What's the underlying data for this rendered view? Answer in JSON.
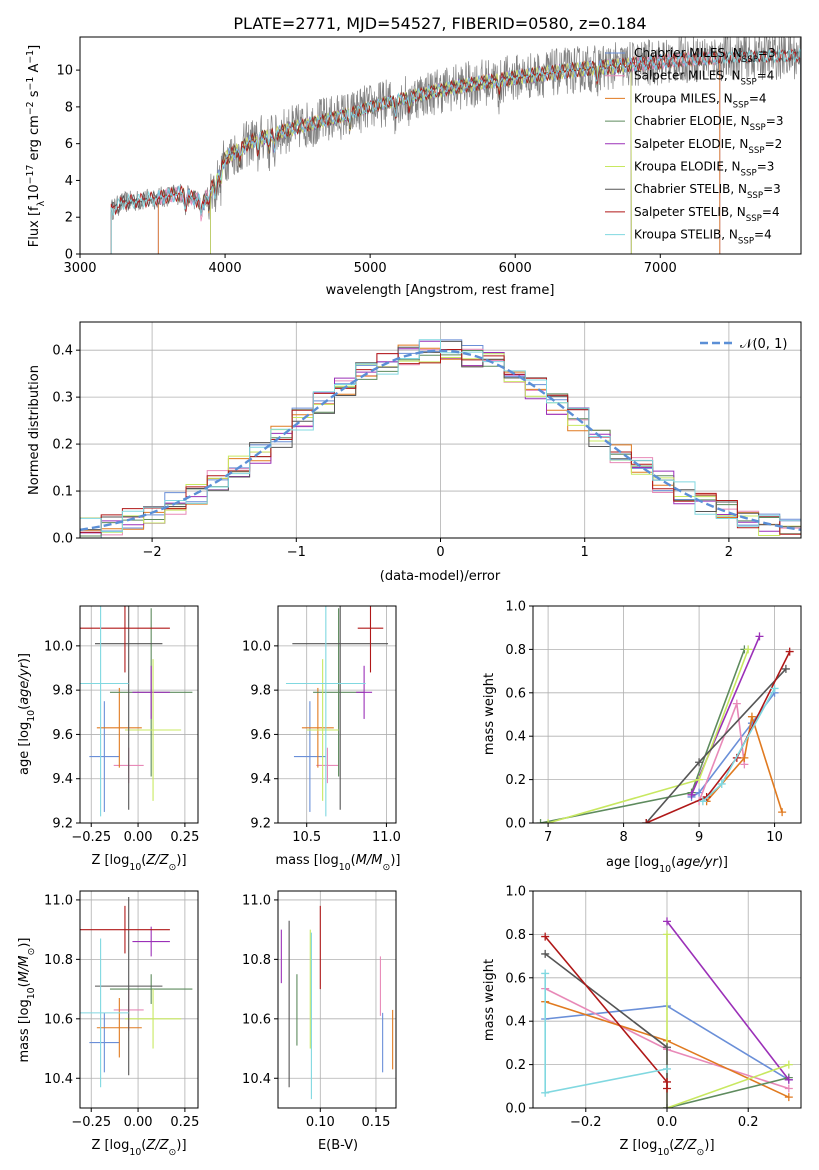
{
  "figure_title": "PLATE=2771, MJD=54527, FIBERID=0580, z=0.184",
  "colors": {
    "Chabrier MILES": "#6a8fd8",
    "Salpeter MILES": "#e889b8",
    "Kroupa MILES": "#e07a20",
    "Chabrier ELODIE": "#5e8b5e",
    "Salpeter ELODIE": "#9b30b8",
    "Kroupa ELODIE": "#c8e860",
    "Chabrier STELIB": "#555555",
    "Salpeter STELIB": "#b01818",
    "Kroupa STELIB": "#80d8e0",
    "data": "#808080",
    "gaussian": "#5b8fd6"
  },
  "chart_data": [
    {
      "id": "spectrum",
      "type": "line",
      "title": "PLATE=2771, MJD=54527, FIBERID=0580, z=0.184",
      "xlabel": "wavelength [Angstrom, rest frame]",
      "ylabel": "Flux [f_λ 10^-17 erg cm^-2 s^-1 A^-1]",
      "xlim": [
        3000,
        7970
      ],
      "ylim": [
        0,
        11.8
      ],
      "xticks": [
        3000,
        4000,
        5000,
        6000,
        7000
      ],
      "yticks": [
        0,
        2,
        4,
        6,
        8,
        10
      ],
      "grid": false,
      "legend_position": "upper-right",
      "legend": [
        "Chabrier MILES, N_SSP=3",
        "Salpeter MILES, N_SSP=4",
        "Kroupa MILES, N_SSP=4",
        "Chabrier ELODIE, N_SSP=3",
        "Salpeter ELODIE, N_SSP=2",
        "Kroupa ELODIE, N_SSP=3",
        "Chabrier STELIB, N_SSP=3",
        "Salpeter STELIB, N_SSP=4",
        "Kroupa STELIB, N_SSP=4"
      ],
      "continuum_x": [
        3215,
        3300,
        3500,
        3700,
        3850,
        3950,
        4000,
        4200,
        4500,
        4800,
        5000,
        5300,
        5600,
        6000,
        6400,
        6800,
        7200,
        7500,
        7970
      ],
      "continuum_y": [
        2.4,
        2.8,
        3.0,
        3.3,
        2.8,
        4.2,
        5.2,
        6.2,
        6.9,
        7.5,
        8.0,
        8.6,
        9.1,
        9.6,
        10.0,
        10.3,
        10.6,
        10.7,
        10.8
      ],
      "model_ranges": {
        "Chabrier MILES": [
          3540,
          7410
        ],
        "Salpeter MILES": [
          3540,
          7410
        ],
        "Kroupa MILES": [
          3540,
          7410
        ],
        "Chabrier ELODIE": [
          3900,
          6800
        ],
        "Salpeter ELODIE": [
          3900,
          6800
        ],
        "Kroupa ELODIE": [
          3900,
          6800
        ],
        "Chabrier STELIB": [
          3215,
          7970
        ],
        "Salpeter STELIB": [
          3215,
          7970
        ],
        "Kroupa STELIB": [
          3215,
          7970
        ]
      }
    },
    {
      "id": "residuals",
      "type": "histogram",
      "xlabel": "(data-model)/error",
      "ylabel": "Normed distribution",
      "xlim": [
        -2.5,
        2.5
      ],
      "ylim": [
        0,
        0.46
      ],
      "xticks": [
        -2,
        -1,
        0,
        1,
        2
      ],
      "yticks": [
        0.0,
        0.1,
        0.2,
        0.3,
        0.4
      ],
      "grid": true,
      "legend_position": "upper-right",
      "legend": [
        "N(0, 1)"
      ]
    },
    {
      "id": "age_vs_Z",
      "type": "errorbar",
      "xlabel": "Z [log10(Z/Z⊙)]",
      "ylabel": "age  [log10(age/yr)]",
      "xlim": [
        -0.31,
        0.32
      ],
      "ylim": [
        9.2,
        10.18
      ],
      "xticks": [
        -0.25,
        0.0,
        0.25
      ],
      "yticks": [
        9.2,
        9.4,
        9.6,
        9.8,
        10.0
      ],
      "points": [
        {
          "model": "Chabrier MILES",
          "x": -0.18,
          "y": 9.5,
          "xerr": 0.08,
          "yerr": 0.25
        },
        {
          "model": "Salpeter MILES",
          "x": -0.05,
          "y": 9.46,
          "xerr": 0.08,
          "yerr": 0.08
        },
        {
          "model": "Kroupa MILES",
          "x": -0.1,
          "y": 9.63,
          "xerr": 0.12,
          "yerr": 0.18
        },
        {
          "model": "Chabrier ELODIE",
          "x": 0.07,
          "y": 9.79,
          "xerr": 0.22,
          "yerr": 0.38
        },
        {
          "model": "Salpeter ELODIE",
          "x": 0.07,
          "y": 9.79,
          "xerr": 0.1,
          "yerr": 0.12
        },
        {
          "model": "Kroupa ELODIE",
          "x": 0.08,
          "y": 9.62,
          "xerr": 0.15,
          "yerr": 0.32
        },
        {
          "model": "Chabrier STELIB",
          "x": -0.05,
          "y": 10.01,
          "xerr": 0.18,
          "yerr": 0.75
        },
        {
          "model": "Salpeter STELIB",
          "x": -0.07,
          "y": 10.08,
          "xerr": 0.24,
          "yerr": 0.2
        },
        {
          "model": "Kroupa STELIB",
          "x": -0.2,
          "y": 9.83,
          "xerr": 0.15,
          "yerr": 0.6
        }
      ]
    },
    {
      "id": "age_vs_mass",
      "type": "errorbar",
      "xlabel": "mass [log10(M/M⊙)]",
      "ylabel": "",
      "xlim": [
        10.32,
        11.06
      ],
      "ylim": [
        9.2,
        10.18
      ],
      "xticks": [
        10.5,
        11.0
      ],
      "yticks": [
        9.2,
        9.4,
        9.6,
        9.8,
        10.0
      ],
      "points": [
        {
          "model": "Chabrier MILES",
          "x": 10.52,
          "y": 9.5,
          "xerr": 0.1,
          "yerr": 0.25
        },
        {
          "model": "Salpeter MILES",
          "x": 10.63,
          "y": 9.46,
          "xerr": 0.07,
          "yerr": 0.08
        },
        {
          "model": "Kroupa MILES",
          "x": 10.57,
          "y": 9.63,
          "xerr": 0.1,
          "yerr": 0.18
        },
        {
          "model": "Chabrier ELODIE",
          "x": 10.7,
          "y": 9.79,
          "xerr": 0.16,
          "yerr": 0.38
        },
        {
          "model": "Salpeter ELODIE",
          "x": 10.86,
          "y": 9.79,
          "xerr": 0.05,
          "yerr": 0.12
        },
        {
          "model": "Kroupa ELODIE",
          "x": 10.6,
          "y": 9.62,
          "xerr": 0.1,
          "yerr": 0.32
        },
        {
          "model": "Chabrier STELIB",
          "x": 10.71,
          "y": 10.01,
          "xerr": 0.3,
          "yerr": 0.75
        },
        {
          "model": "Salpeter STELIB",
          "x": 10.9,
          "y": 10.08,
          "xerr": 0.08,
          "yerr": 0.2
        },
        {
          "model": "Kroupa STELIB",
          "x": 10.62,
          "y": 9.83,
          "xerr": 0.25,
          "yerr": 0.6
        }
      ]
    },
    {
      "id": "massweight_vs_age",
      "type": "line",
      "xlabel": "age  [log10(age/yr)]",
      "ylabel": "mass weight",
      "xlim": [
        6.8,
        10.35
      ],
      "ylim": [
        0,
        1.0
      ],
      "xticks": [
        7,
        8,
        9,
        10
      ],
      "yticks": [
        0.0,
        0.2,
        0.4,
        0.6,
        0.8,
        1.0
      ],
      "grid": true,
      "series": [
        {
          "model": "Chabrier MILES",
          "x": [
            8.9,
            9.0,
            9.7,
            10.0
          ],
          "y": [
            0.12,
            0.14,
            0.46,
            0.6
          ]
        },
        {
          "model": "Salpeter MILES",
          "x": [
            9.0,
            9.5,
            9.6
          ],
          "y": [
            0.1,
            0.55,
            0.27
          ]
        },
        {
          "model": "Kroupa MILES",
          "x": [
            9.1,
            9.6,
            9.7,
            10.1
          ],
          "y": [
            0.1,
            0.3,
            0.49,
            0.05
          ]
        },
        {
          "model": "Chabrier ELODIE",
          "x": [
            6.9,
            8.9,
            9.6
          ],
          "y": [
            0.0,
            0.14,
            0.8
          ]
        },
        {
          "model": "Salpeter ELODIE",
          "x": [
            8.9,
            9.8
          ],
          "y": [
            0.13,
            0.86
          ]
        },
        {
          "model": "Kroupa ELODIE",
          "x": [
            7.0,
            9.0,
            9.65
          ],
          "y": [
            0.0,
            0.2,
            0.8
          ]
        },
        {
          "model": "Chabrier STELIB",
          "x": [
            8.3,
            9.0,
            10.15
          ],
          "y": [
            0.0,
            0.28,
            0.71
          ]
        },
        {
          "model": "Salpeter STELIB",
          "x": [
            8.3,
            9.1,
            9.5,
            10.2
          ],
          "y": [
            0.0,
            0.12,
            0.3,
            0.79
          ]
        },
        {
          "model": "Kroupa STELIB",
          "x": [
            9.05,
            9.3,
            10.0
          ],
          "y": [
            0.1,
            0.18,
            0.62
          ]
        }
      ]
    },
    {
      "id": "mass_vs_Z",
      "type": "errorbar",
      "xlabel": "Z [log10(Z/Z⊙)]",
      "ylabel": "mass [log10(M/M⊙)]",
      "xlim": [
        -0.31,
        0.32
      ],
      "ylim": [
        10.3,
        11.03
      ],
      "xticks": [
        -0.25,
        0.0,
        0.25
      ],
      "yticks": [
        10.4,
        10.6,
        10.8,
        11.0
      ],
      "points": [
        {
          "model": "Chabrier MILES",
          "x": -0.18,
          "y": 10.52,
          "xerr": 0.08,
          "yerr": 0.1
        },
        {
          "model": "Salpeter MILES",
          "x": -0.05,
          "y": 10.63,
          "xerr": 0.08,
          "yerr": 0.07
        },
        {
          "model": "Kroupa MILES",
          "x": -0.1,
          "y": 10.57,
          "xerr": 0.12,
          "yerr": 0.1
        },
        {
          "model": "Chabrier ELODIE",
          "x": 0.07,
          "y": 10.7,
          "xerr": 0.22,
          "yerr": 0.05
        },
        {
          "model": "Salpeter ELODIE",
          "x": 0.07,
          "y": 10.86,
          "xerr": 0.1,
          "yerr": 0.05
        },
        {
          "model": "Kroupa ELODIE",
          "x": 0.08,
          "y": 10.6,
          "xerr": 0.15,
          "yerr": 0.1
        },
        {
          "model": "Chabrier STELIB",
          "x": -0.05,
          "y": 10.71,
          "xerr": 0.18,
          "yerr": 0.3
        },
        {
          "model": "Salpeter STELIB",
          "x": -0.07,
          "y": 10.9,
          "xerr": 0.24,
          "yerr": 0.08
        },
        {
          "model": "Kroupa STELIB",
          "x": -0.2,
          "y": 10.62,
          "xerr": 0.15,
          "yerr": 0.25
        }
      ]
    },
    {
      "id": "mass_vs_EBV",
      "type": "errorbar",
      "xlabel": "E(B-V)",
      "ylabel": "",
      "xlim": [
        0.062,
        0.168
      ],
      "ylim": [
        10.3,
        11.03
      ],
      "xticks": [
        0.1,
        0.15
      ],
      "yticks": [
        10.4,
        10.6,
        10.8,
        11.0
      ],
      "points": [
        {
          "model": "Chabrier MILES",
          "x": 0.156,
          "y": 10.52,
          "xerr": 0,
          "yerr": 0.1
        },
        {
          "model": "Salpeter MILES",
          "x": 0.154,
          "y": 10.71,
          "xerr": 0,
          "yerr": 0.1
        },
        {
          "model": "Kroupa MILES",
          "x": 0.165,
          "y": 10.53,
          "xerr": 0,
          "yerr": 0.1
        },
        {
          "model": "Chabrier ELODIE",
          "x": 0.079,
          "y": 10.63,
          "xerr": 0,
          "yerr": 0.12
        },
        {
          "model": "Salpeter ELODIE",
          "x": 0.065,
          "y": 10.81,
          "xerr": 0,
          "yerr": 0.09
        },
        {
          "model": "Kroupa ELODIE",
          "x": 0.091,
          "y": 10.7,
          "xerr": 0,
          "yerr": 0.2
        },
        {
          "model": "Chabrier STELIB",
          "x": 0.072,
          "y": 10.65,
          "xerr": 0,
          "yerr": 0.28
        },
        {
          "model": "Salpeter STELIB",
          "x": 0.1,
          "y": 10.84,
          "xerr": 0,
          "yerr": 0.14
        },
        {
          "model": "Kroupa STELIB",
          "x": 0.092,
          "y": 10.61,
          "xerr": 0,
          "yerr": 0.28
        }
      ]
    },
    {
      "id": "massweight_vs_Z",
      "type": "line",
      "xlabel": "Z [log10(Z/Z⊙)]",
      "ylabel": "mass weight",
      "xlim": [
        -0.33,
        0.33
      ],
      "ylim": [
        0,
        1.0
      ],
      "xticks": [
        -0.2,
        0.0,
        0.2
      ],
      "yticks": [
        0.0,
        0.2,
        0.4,
        0.6,
        0.8,
        1.0
      ],
      "grid": true,
      "series": [
        {
          "model": "Chabrier MILES",
          "x": [
            -0.3,
            0.0,
            0.3
          ],
          "y": [
            0.41,
            0.47,
            0.13
          ]
        },
        {
          "model": "Salpeter MILES",
          "x": [
            -0.3,
            0.0,
            0.3
          ],
          "y": [
            0.55,
            0.27,
            0.09
          ]
        },
        {
          "model": "Kroupa MILES",
          "x": [
            -0.3,
            0.0,
            0.3
          ],
          "y": [
            0.49,
            0.31,
            0.05
          ]
        },
        {
          "model": "Chabrier ELODIE",
          "x": [
            0.0,
            0.3
          ],
          "y": [
            0.0,
            0.14
          ]
        },
        {
          "model": "Salpeter ELODIE",
          "x": [
            0.0,
            0.3
          ],
          "y": [
            0.86,
            0.13
          ]
        },
        {
          "model": "Kroupa ELODIE",
          "x": [
            0.0,
            0.0,
            0.3
          ],
          "y": [
            0.8,
            0.0,
            0.2
          ]
        },
        {
          "model": "Chabrier STELIB",
          "x": [
            -0.3,
            0.0,
            0.0
          ],
          "y": [
            0.71,
            0.28,
            0.0
          ]
        },
        {
          "model": "Salpeter STELIB",
          "x": [
            -0.3,
            0.0,
            0.0
          ],
          "y": [
            0.79,
            0.12,
            0.09
          ]
        },
        {
          "model": "Kroupa STELIB",
          "x": [
            -0.3,
            -0.3,
            0.0
          ],
          "y": [
            0.62,
            0.07,
            0.18
          ]
        }
      ]
    }
  ]
}
